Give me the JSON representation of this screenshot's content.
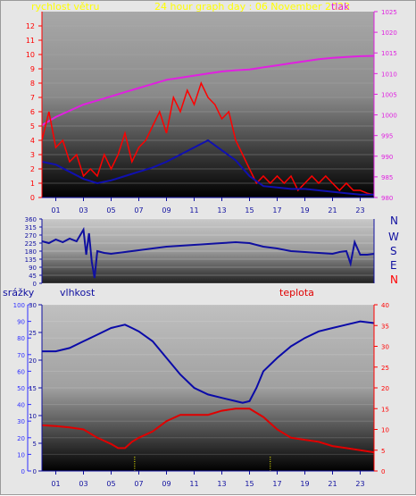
{
  "header": {
    "wind_label": "rychlost větru",
    "title": "24 hour graph day : 06 November 2023",
    "pressure_label": "tlak"
  },
  "lower_header": {
    "precip_label": "srážky",
    "humidity_label": "vlhkost",
    "temp_label": "teplota"
  },
  "compass": [
    "N",
    "W",
    "S",
    "E",
    "N"
  ],
  "colors": {
    "wind": "#ff0000",
    "wind_avg": "#1010b0",
    "pressure": "#e020e0",
    "direction": "#1010a0",
    "humidity": "#0a0aa8",
    "temperature": "#e00000",
    "precip_axis": "#3030ff",
    "temp_axis": "#ff0000",
    "title": "#ffff00",
    "wind_label": "#ffff00"
  },
  "chart_data": [
    {
      "type": "line",
      "title": "24 hour graph day : 06 November 2023",
      "x_ticks": [
        "01",
        "03",
        "05",
        "07",
        "09",
        "11",
        "13",
        "15",
        "17",
        "19",
        "21",
        "23"
      ],
      "x_range_hours": [
        0,
        24
      ],
      "left_axis": {
        "label": "rychlost větru",
        "range": [
          0,
          13
        ],
        "ticks": [
          0,
          1,
          2,
          3,
          4,
          5,
          6,
          7,
          8,
          9,
          10,
          11,
          12
        ]
      },
      "right_axis": {
        "label": "tlak",
        "range": [
          980,
          1025
        ],
        "ticks": [
          980,
          985,
          990,
          995,
          1000,
          1005,
          1010,
          1015,
          1020,
          1025
        ]
      },
      "series": [
        {
          "axis": "right",
          "x": [
            0,
            1,
            2,
            3,
            4,
            5,
            6,
            7,
            8,
            9,
            10,
            11,
            12,
            13,
            14,
            15,
            16,
            17,
            18,
            19,
            20,
            21,
            22,
            23,
            24
          ],
          "values": [
            997.5,
            999.5,
            1001,
            1002.5,
            1003.5,
            1004.5,
            1005.5,
            1006.5,
            1007.5,
            1008.5,
            1009,
            1009.5,
            1010,
            1010.5,
            1010.8,
            1011,
            1011.5,
            1012,
            1012.5,
            1013,
            1013.5,
            1013.8,
            1014,
            1014.2,
            1014.3
          ]
        },
        {
          "axis": "left",
          "x": [
            0,
            0.5,
            1,
            1.5,
            2,
            2.5,
            3,
            3.5,
            4,
            4.5,
            5,
            5.5,
            6,
            6.5,
            7,
            7.5,
            8,
            8.5,
            9,
            9.5,
            10,
            10.5,
            11,
            11.5,
            12,
            12.5,
            13,
            13.5,
            14,
            14.5,
            15,
            15.5,
            16,
            16.5,
            17,
            17.5,
            18,
            18.5,
            19,
            19.5,
            20,
            20.5,
            21,
            21.5,
            22,
            22.5,
            23,
            23.5,
            24
          ],
          "values": [
            4,
            6,
            3.5,
            4,
            2.5,
            3,
            1.5,
            2,
            1.5,
            3,
            2,
            3,
            4.5,
            2.5,
            3.5,
            4,
            5,
            6,
            4.5,
            7,
            6,
            7.5,
            6.5,
            8,
            7,
            6.5,
            5.5,
            6,
            4,
            3,
            2,
            1,
            1.5,
            1,
            1.5,
            1,
            1.5,
            0.5,
            1,
            1.5,
            1,
            1.5,
            1,
            0.5,
            1,
            0.5,
            0.5,
            0.3,
            0.2
          ]
        },
        {
          "axis": "left",
          "x": [
            0,
            1,
            2,
            3,
            4,
            5,
            6,
            7,
            8,
            9,
            10,
            11,
            12,
            13,
            14,
            15,
            16,
            17,
            18,
            19,
            20,
            21,
            22,
            23,
            24
          ],
          "values": [
            2.5,
            2.3,
            1.8,
            1.3,
            1,
            1.2,
            1.5,
            1.8,
            2.1,
            2.5,
            3,
            3.5,
            4,
            3.3,
            2.6,
            1.5,
            0.8,
            0.7,
            0.6,
            0.6,
            0.5,
            0.4,
            0.3,
            0.2,
            0.2
          ]
        }
      ]
    },
    {
      "type": "line",
      "x_range_hours": [
        0,
        24
      ],
      "y_axis": {
        "range": [
          0,
          360
        ],
        "ticks": [
          0,
          45,
          90,
          135,
          180,
          225,
          270,
          315,
          360
        ]
      },
      "series": [
        {
          "x": [
            0,
            0.5,
            1,
            1.5,
            2,
            2.5,
            3,
            3.2,
            3.4,
            3.6,
            3.8,
            4,
            4.5,
            5,
            6,
            7,
            8,
            9,
            10,
            11,
            12,
            13,
            14,
            15,
            16,
            17,
            18,
            19,
            20,
            21,
            21.5,
            22,
            22.3,
            22.6,
            23,
            23.5,
            24
          ],
          "values": [
            235,
            225,
            245,
            230,
            250,
            235,
            300,
            160,
            280,
            120,
            30,
            180,
            170,
            165,
            175,
            185,
            195,
            205,
            210,
            215,
            220,
            225,
            230,
            225,
            205,
            195,
            180,
            175,
            170,
            165,
            175,
            180,
            110,
            230,
            160,
            160,
            165
          ]
        }
      ]
    },
    {
      "type": "line",
      "x_range_hours": [
        0,
        24
      ],
      "left_axis": {
        "label": "srážky",
        "range": [
          0,
          100
        ],
        "ticks": [
          0,
          10,
          20,
          30,
          40,
          50,
          60,
          70,
          80,
          90,
          100
        ]
      },
      "inner_axis": {
        "label": "vlhkost",
        "range": [
          0,
          30
        ],
        "ticks": [
          0,
          5,
          10,
          15,
          20,
          25,
          30
        ]
      },
      "right_axis": {
        "label": "teplota",
        "range": [
          0,
          40
        ],
        "ticks": [
          0,
          5,
          10,
          15,
          20,
          25,
          30,
          35,
          40
        ]
      },
      "series": [
        {
          "name": "vlhkost",
          "axis": "left",
          "x": [
            0,
            1,
            2,
            3,
            4,
            5,
            6,
            6.5,
            7,
            8,
            9,
            10,
            11,
            12,
            13,
            14,
            14.5,
            15,
            15.5,
            16,
            17,
            18,
            19,
            20,
            21,
            22,
            23,
            24
          ],
          "values": [
            72,
            72,
            74,
            78,
            82,
            86,
            88,
            86,
            84,
            78,
            68,
            58,
            50,
            46,
            44,
            42,
            41,
            42,
            50,
            60,
            68,
            75,
            80,
            84,
            86,
            88,
            90,
            89
          ]
        },
        {
          "name": "teplota",
          "axis": "right",
          "x": [
            0,
            1,
            2,
            3,
            4,
            5,
            5.5,
            6,
            6.5,
            7,
            8,
            9,
            10,
            11,
            12,
            13,
            14,
            15,
            16,
            17,
            18,
            19,
            20,
            21,
            22,
            23,
            24
          ],
          "values": [
            11,
            10.8,
            10.5,
            10,
            8,
            6.5,
            5.5,
            5.5,
            7,
            8,
            9.5,
            12,
            13.5,
            13.5,
            13.5,
            14.5,
            15,
            15,
            13,
            10,
            8,
            7.5,
            7,
            6,
            5.5,
            5,
            4.5
          ]
        }
      ],
      "markers_hours": [
        6.7,
        16.5
      ]
    }
  ]
}
